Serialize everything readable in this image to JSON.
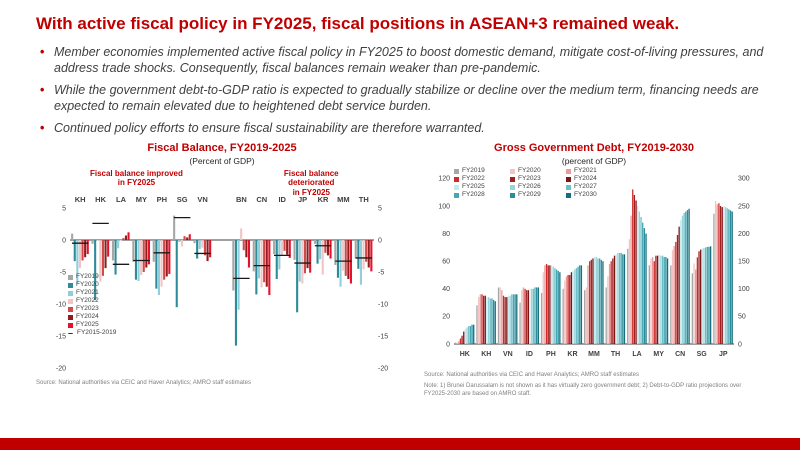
{
  "slide": {
    "title": "With active fiscal policy in FY2025, fiscal positions in ASEAN+3 remained weak.",
    "accent_color": "#C00000",
    "bullets": [
      "Member economies implemented active fiscal policy in FY2025 to boost domestic demand, mitigate cost-of-living pressures, and address trade shocks. Consequently, fiscal balances remain weaker than pre-pandemic.",
      "While the government debt-to-GDP ratio is expected to gradually stabilize or decline over the medium term, financing needs are expected to remain elevated due to heightened debt service burden.",
      "Continued policy efforts to ensure fiscal sustainability are therefore warranted."
    ]
  },
  "fiscal_balance_chart": {
    "title": "Fiscal Balance, FY2019-2025",
    "subtitle": "(Percent of GDP)",
    "annotations": {
      "improved": "Fiscal balance improved\nin FY2025",
      "deteriorated": "Fiscal balance deteriorated\nin FY2025"
    },
    "source": "Source: National authorities via CEIC and Haver Analytics; AMRO staff estimates"
  },
  "govt_debt_chart": {
    "title": "Gross Government Debt, FY2019-2030",
    "subtitle": "(percent of GDP)",
    "source": "Source: National authorities via CEIC and Haver Analytics; AMRO staff estimates",
    "note": "Note: 1) Brunei Darussalam is not shown as it has virtually zero government debt; 2) Debt-to-GDP ratio projections over FY2025-2030 are based on AMRO staff."
  },
  "chart_data": [
    {
      "type": "bar",
      "title": "Fiscal Balance, FY2019-2025",
      "ylabel": "Percent of GDP",
      "ylim": [
        -20,
        5
      ],
      "yticks": [
        5,
        0,
        -5,
        -10,
        -15,
        -20
      ],
      "grid": false,
      "legend_position": "inside bottom-left",
      "groups": [
        {
          "label": "Fiscal balance improved in FY2025",
          "categories": [
            "KH",
            "HK",
            "LA",
            "MY",
            "PH",
            "SG",
            "VN"
          ]
        },
        {
          "label": "Fiscal balance deteriorated in FY2025",
          "categories": [
            "BN",
            "CN",
            "ID",
            "JP",
            "KR",
            "MM",
            "TH"
          ]
        }
      ],
      "categories": [
        "KH",
        "HK",
        "LA",
        "MY",
        "PH",
        "SG",
        "VN",
        "BN",
        "CN",
        "ID",
        "JP",
        "KR",
        "MM",
        "TH"
      ],
      "series": [
        {
          "name": "FY2019",
          "color": "#A6A6A6",
          "values": [
            1.0,
            -0.6,
            -3.2,
            -3.4,
            -3.4,
            3.8,
            -0.5,
            -7.9,
            -4.9,
            -2.2,
            -3.1,
            -0.6,
            -3.9,
            -2.9
          ]
        },
        {
          "name": "FY2020",
          "color": "#2E8B98",
          "values": [
            -3.3,
            -9.4,
            -5.4,
            -6.2,
            -7.6,
            -10.5,
            -2.9,
            -16.5,
            -8.5,
            -6.1,
            -11.3,
            -3.7,
            -5.9,
            -4.5
          ]
        },
        {
          "name": "FY2021",
          "color": "#92CDDC",
          "values": [
            -6.8,
            0.0,
            -1.3,
            -6.4,
            -8.6,
            -0.3,
            -1.4,
            -10.9,
            -6.0,
            -4.6,
            -6.5,
            -3.0,
            -7.3,
            -7.0
          ]
        },
        {
          "name": "FY2022",
          "color": "#F2C4C4",
          "values": [
            -4.4,
            -6.5,
            -0.1,
            -5.5,
            -7.3,
            -1.0,
            -1.2,
            1.8,
            -7.4,
            -2.4,
            -6.8,
            -5.4,
            -4.8,
            -4.6
          ]
        },
        {
          "name": "FY2023",
          "color": "#D04A4A",
          "values": [
            -3.2,
            -5.6,
            0.3,
            -5.0,
            -6.2,
            0.6,
            -2.4,
            -1.6,
            -6.6,
            -1.7,
            -5.2,
            -2.0,
            -5.6,
            -3.4
          ]
        },
        {
          "name": "FY2024",
          "color": "#8F1D1D",
          "values": [
            -2.7,
            -4.4,
            0.7,
            -4.3,
            -5.7,
            0.4,
            -3.3,
            -2.7,
            -7.3,
            -2.3,
            -4.4,
            -2.4,
            -6.1,
            -4.3
          ]
        },
        {
          "name": "FY2025",
          "color": "#E8112D",
          "values": [
            -2.2,
            -2.6,
            1.2,
            -3.8,
            -5.3,
            0.9,
            -2.7,
            -4.3,
            -8.6,
            -2.8,
            -5.1,
            -2.9,
            -6.8,
            -4.9
          ]
        }
      ],
      "avg_series": {
        "name": "FY2015-2019",
        "marker": "dash",
        "color": "#1A1A1A",
        "values": [
          -0.5,
          2.6,
          -3.8,
          -3.2,
          -2.0,
          3.5,
          -2.1,
          -6.0,
          -4.0,
          -2.4,
          -3.6,
          -0.9,
          -3.3,
          -2.8
        ]
      }
    },
    {
      "type": "bar",
      "title": "Gross Government Debt, FY2019-2030",
      "ylabel": "percent of GDP",
      "ylim_left": [
        0,
        120
      ],
      "ylim_right": [
        0,
        300
      ],
      "yticks_left": [
        0,
        20,
        40,
        60,
        80,
        100,
        120
      ],
      "yticks_right": [
        0,
        50,
        100,
        150,
        200,
        250,
        300
      ],
      "grid": false,
      "legend_position": "inside top-left",
      "categories": [
        "HK",
        "KH",
        "VN",
        "ID",
        "PH",
        "KR",
        "MM",
        "TH",
        "LA",
        "MY",
        "CN",
        "SG",
        "JP"
      ],
      "right_axis_categories": [
        "SG",
        "JP"
      ],
      "series": [
        {
          "name": "FY2019",
          "color": "#A6A6A6",
          "values": [
            1,
            28,
            41,
            30,
            37,
            40,
            39,
            41,
            69,
            57,
            57,
            128,
            236
          ]
        },
        {
          "name": "FY2020",
          "color": "#F2C4C4",
          "values": [
            1,
            34,
            41,
            39,
            52,
            46,
            41,
            49,
            76,
            62,
            68,
            146,
            259
          ]
        },
        {
          "name": "FY2021",
          "color": "#E89C9C",
          "values": [
            2,
            36,
            39,
            41,
            57,
            49,
            57,
            58,
            93,
            63,
            71,
            135,
            253
          ]
        },
        {
          "name": "FY2022",
          "color": "#D02B2B",
          "values": [
            4,
            36,
            35,
            40,
            58,
            50,
            60,
            60,
            112,
            60,
            74,
            157,
            255
          ]
        },
        {
          "name": "FY2023",
          "color": "#A02020",
          "values": [
            6,
            35,
            34,
            39,
            57,
            50,
            61,
            62,
            108,
            64,
            79,
            168,
            250
          ]
        },
        {
          "name": "FY2024",
          "color": "#7E1515",
          "values": [
            9,
            35,
            34,
            39,
            57,
            52,
            62,
            64,
            104,
            64,
            85,
            171,
            248
          ]
        },
        {
          "name": "FY2025",
          "color": "#C7E8EC",
          "values": [
            11,
            34,
            35,
            40,
            57,
            53,
            63,
            65,
            100,
            65,
            90,
            173,
            250
          ]
        },
        {
          "name": "FY2026",
          "color": "#9AD4DB",
          "values": [
            12,
            34,
            35,
            40,
            56,
            54,
            63,
            66,
            96,
            64,
            93,
            174,
            248
          ]
        },
        {
          "name": "FY2027",
          "color": "#6FBFC9",
          "values": [
            13,
            33,
            36,
            40,
            55,
            55,
            62,
            66,
            92,
            64,
            95,
            175,
            246
          ]
        },
        {
          "name": "FY2028",
          "color": "#46A7B4",
          "values": [
            13,
            33,
            36,
            41,
            54,
            56,
            62,
            66,
            88,
            63,
            96,
            176,
            244
          ]
        },
        {
          "name": "FY2029",
          "color": "#2A8D9C",
          "values": [
            14,
            32,
            36,
            41,
            53,
            57,
            61,
            65,
            84,
            63,
            97,
            176,
            242
          ]
        },
        {
          "name": "FY2030",
          "color": "#176E7C",
          "values": [
            14,
            31,
            36,
            41,
            52,
            57,
            60,
            65,
            80,
            62,
            98,
            177,
            240
          ]
        }
      ]
    }
  ]
}
